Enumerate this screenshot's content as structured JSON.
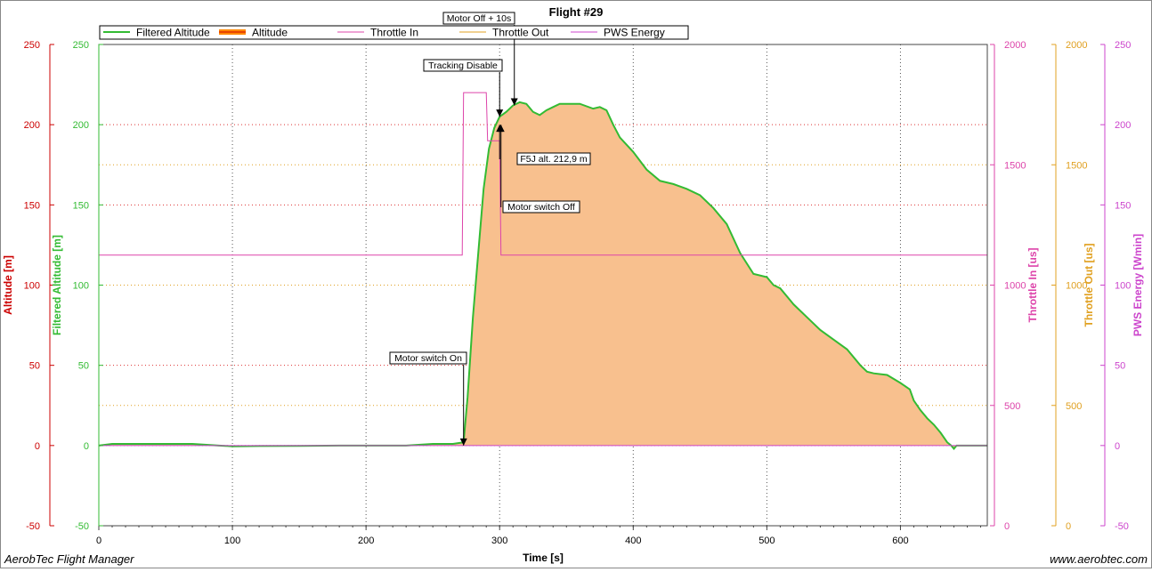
{
  "app": {
    "footer_left": "AerobTec Flight Manager",
    "footer_right": "www.aerobtec.com"
  },
  "chart_data": {
    "type": "area",
    "title": "Flight #29",
    "xlabel": "Time [s]",
    "xlim": [
      0,
      665
    ],
    "x_ticks": [
      0,
      100,
      200,
      300,
      400,
      500,
      600
    ],
    "grid": true,
    "legend_position": "top",
    "axes": [
      {
        "id": "altitude",
        "label": "Altitude [m]",
        "side": "left",
        "color": "#cc0000",
        "ylim": [
          -50,
          250
        ],
        "ticks": [
          -50,
          0,
          50,
          100,
          150,
          200,
          250
        ]
      },
      {
        "id": "filtered",
        "label": "Filtered Altitude [m]",
        "side": "left",
        "color": "#33bb33",
        "ylim": [
          -50,
          250
        ],
        "ticks": [
          -50,
          0,
          50,
          100,
          150,
          200,
          250
        ]
      },
      {
        "id": "throttle_in",
        "label": "Throttle In [us]",
        "side": "right",
        "color": "#dd44aa",
        "ylim": [
          0,
          2000
        ],
        "ticks": [
          0,
          500,
          1000,
          1500,
          2000
        ]
      },
      {
        "id": "throttle_out",
        "label": "Throttle Out [us]",
        "side": "right",
        "color": "#e0a020",
        "ylim": [
          0,
          2000
        ],
        "ticks": [
          0,
          500,
          1000,
          1500,
          2000
        ]
      },
      {
        "id": "pws",
        "label": "PWS Energy [Wmin]",
        "side": "right",
        "color": "#cc44cc",
        "ylim": [
          -50,
          250
        ],
        "ticks": [
          -50,
          0,
          50,
          100,
          150,
          200,
          250
        ]
      }
    ],
    "legend": [
      {
        "name": "Filtered Altitude",
        "color": "#33bb33"
      },
      {
        "name": "Altitude",
        "color": "#ff8800"
      },
      {
        "name": "Throttle In",
        "color": "#dd44aa"
      },
      {
        "name": "Throttle Out",
        "color": "#e0a020"
      },
      {
        "name": "PWS Energy",
        "color": "#cc44cc"
      }
    ],
    "series": [
      {
        "name": "Filtered Altitude",
        "axis": "filtered",
        "color": "#33bb33",
        "fill": "#f8c08e",
        "x": [
          0,
          10,
          30,
          50,
          70,
          90,
          100,
          120,
          150,
          180,
          200,
          230,
          250,
          265,
          273,
          276,
          280,
          284,
          288,
          292,
          296,
          300,
          305,
          310,
          315,
          320,
          325,
          330,
          335,
          340,
          345,
          350,
          360,
          370,
          375,
          380,
          385,
          390,
          400,
          410,
          420,
          430,
          440,
          450,
          460,
          470,
          480,
          490,
          500,
          505,
          510,
          520,
          530,
          540,
          550,
          560,
          570,
          575,
          580,
          590,
          600,
          607,
          610,
          615,
          620,
          625,
          630,
          635,
          638,
          640,
          642,
          665
        ],
        "y": [
          0,
          1,
          1,
          1,
          1,
          0,
          -0.5,
          -0.3,
          -0.2,
          0,
          0,
          0,
          1,
          1,
          2,
          30,
          80,
          120,
          160,
          185,
          198,
          205,
          208,
          212,
          214,
          213,
          208,
          206,
          209,
          211,
          213,
          213,
          213,
          210,
          211,
          209,
          200,
          192,
          183,
          172,
          165,
          163,
          160,
          156,
          148,
          138,
          120,
          107,
          105,
          100,
          98,
          88,
          80,
          72,
          66,
          60,
          50,
          46,
          45,
          44,
          39,
          35,
          28,
          22,
          17,
          13,
          8,
          2,
          0,
          -2,
          0,
          0
        ]
      },
      {
        "name": "Throttle In",
        "axis": "throttle_in",
        "color": "#dd44aa",
        "x": [
          0,
          272,
          273,
          290,
          291,
          293,
          294,
          300,
          301,
          665
        ],
        "y": [
          1125,
          1125,
          1800,
          1800,
          1600,
          1600,
          1600,
          1600,
          1125,
          1125
        ]
      },
      {
        "name": "PWS Energy",
        "axis": "pws",
        "color": "#cc44cc",
        "x": [
          0,
          665
        ],
        "y": [
          0,
          0
        ]
      }
    ],
    "annotations": [
      {
        "label": "Motor switch On",
        "x": 273,
        "y": 0
      },
      {
        "label": "Tracking Disable",
        "x": 300,
        "y": 205
      },
      {
        "label": "Motor Off + 10s",
        "x": 311,
        "y": 212
      },
      {
        "label": "F5J alt. 212,9 m",
        "x": 300,
        "y": 200
      },
      {
        "label": "Motor switch Off",
        "x": 301,
        "y": 200
      }
    ]
  }
}
